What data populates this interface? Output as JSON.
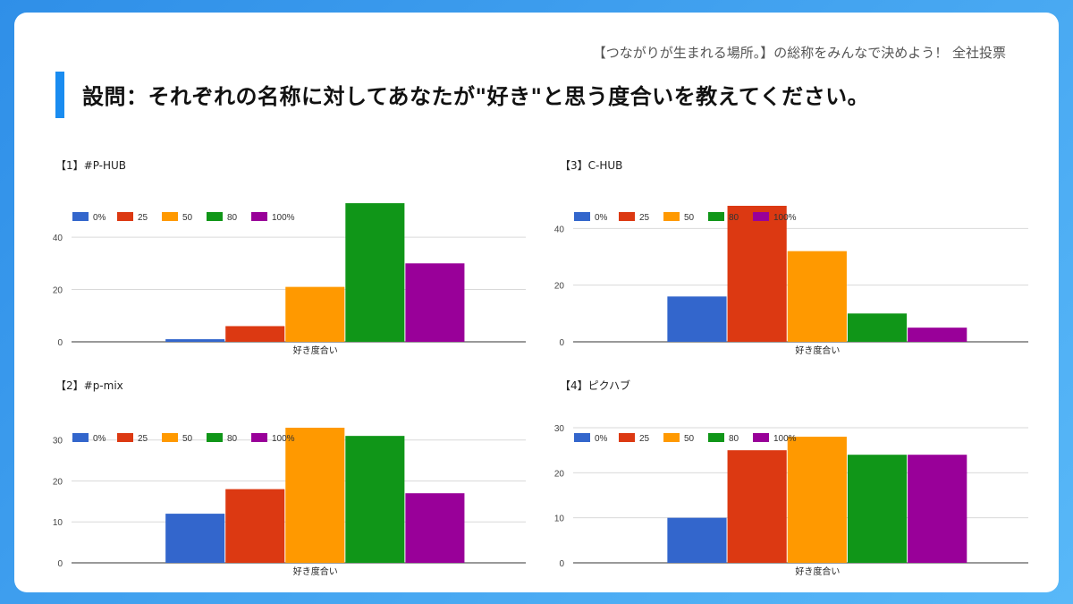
{
  "header": {
    "subtitle": "【つながりが生まれる場所。】の総称をみんなで決めよう！ 全社投票",
    "question": "設問：それぞれの名称に対してあなたが\"好き\"と思う度合いを教えてください。"
  },
  "colors": {
    "series": [
      "#3366cc",
      "#dc3912",
      "#ff9900",
      "#109618",
      "#990099"
    ],
    "accent": "#1a8cf0",
    "background": "#4aa8f5"
  },
  "chart_data": [
    {
      "type": "bar",
      "title": "【1】#P-HUB",
      "categories": [
        "好き度合い"
      ],
      "xlabel": "好き度合い",
      "ylim": [
        0,
        52
      ],
      "yticks": [
        0,
        20,
        40
      ],
      "legend_position": "top-left",
      "series": [
        {
          "name": "0%",
          "values": [
            1
          ]
        },
        {
          "name": "25",
          "values": [
            6
          ]
        },
        {
          "name": "50",
          "values": [
            21
          ]
        },
        {
          "name": "80",
          "values": [
            53
          ]
        },
        {
          "name": "100%",
          "values": [
            30
          ]
        }
      ]
    },
    {
      "type": "bar",
      "title": "【3】C-HUB",
      "categories": [
        "好き度合い"
      ],
      "xlabel": "好き度合い",
      "ylim": [
        0,
        48
      ],
      "yticks": [
        0,
        20,
        40
      ],
      "legend_position": "top-left",
      "series": [
        {
          "name": "0%",
          "values": [
            16
          ]
        },
        {
          "name": "25",
          "values": [
            48
          ]
        },
        {
          "name": "50",
          "values": [
            32
          ]
        },
        {
          "name": "80",
          "values": [
            10
          ]
        },
        {
          "name": "100%",
          "values": [
            5
          ]
        }
      ]
    },
    {
      "type": "bar",
      "title": "【2】#p-mix",
      "categories": [
        "好き度合い"
      ],
      "xlabel": "好き度合い",
      "ylim": [
        0,
        33
      ],
      "yticks": [
        0,
        10,
        20,
        30
      ],
      "legend_position": "top-left",
      "series": [
        {
          "name": "0%",
          "values": [
            12
          ]
        },
        {
          "name": "25",
          "values": [
            18
          ]
        },
        {
          "name": "50",
          "values": [
            33
          ]
        },
        {
          "name": "80",
          "values": [
            31
          ]
        },
        {
          "name": "100%",
          "values": [
            17
          ]
        }
      ]
    },
    {
      "type": "bar",
      "title": "【4】ピクハブ",
      "categories": [
        "好き度合い"
      ],
      "xlabel": "好き度合い",
      "ylim": [
        0,
        30
      ],
      "yticks": [
        0,
        10,
        20,
        30
      ],
      "legend_position": "top-left",
      "series": [
        {
          "name": "0%",
          "values": [
            10
          ]
        },
        {
          "name": "25",
          "values": [
            25
          ]
        },
        {
          "name": "50",
          "values": [
            28
          ]
        },
        {
          "name": "80",
          "values": [
            24
          ]
        },
        {
          "name": "100%",
          "values": [
            24
          ]
        }
      ]
    }
  ]
}
